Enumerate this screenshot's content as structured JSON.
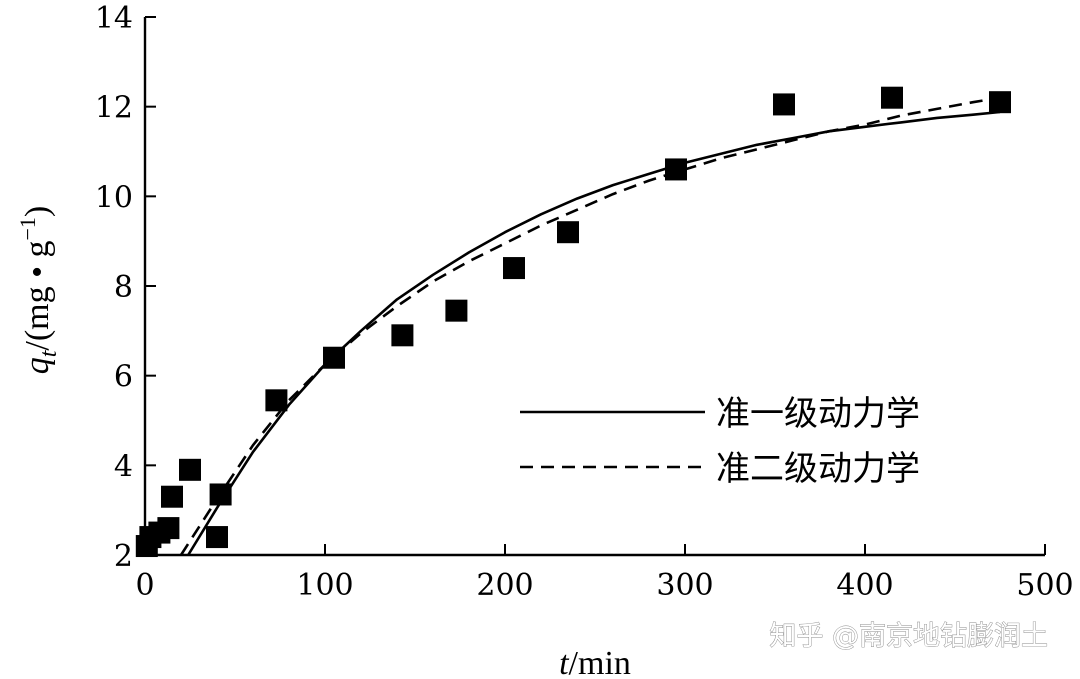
{
  "chart_data": {
    "type": "scatter",
    "title": "",
    "xlabel": "t/min",
    "ylabel": "qt/(mg • g−1)",
    "xlim": [
      0,
      500
    ],
    "ylim": [
      2,
      14
    ],
    "xticks": [
      0,
      100,
      200,
      300,
      400,
      500
    ],
    "yticks": [
      2,
      4,
      6,
      8,
      10,
      12,
      14
    ],
    "xtick_labels": [
      "0",
      "100",
      "200",
      "300",
      "400",
      "500"
    ],
    "ytick_labels": [
      "2",
      "4",
      "6",
      "8",
      "10",
      "12",
      "14"
    ],
    "grid": false,
    "legend_position": "middle-right",
    "marker": "filled-square",
    "points": {
      "x": [
        1,
        3,
        8,
        13,
        15,
        25,
        40,
        42,
        73,
        105,
        143,
        173,
        205,
        235,
        295,
        355,
        415,
        475
      ],
      "y": [
        2.2,
        2.4,
        2.5,
        2.6,
        3.3,
        3.9,
        2.4,
        3.35,
        5.45,
        6.4,
        6.9,
        7.45,
        8.4,
        9.2,
        10.6,
        12.05,
        12.2,
        12.1
      ]
    },
    "series": [
      {
        "name": "准一级动力学",
        "style": "solid",
        "x": [
          24,
          40,
          60,
          80,
          100,
          120,
          140,
          160,
          180,
          200,
          220,
          240,
          260,
          280,
          300,
          320,
          340,
          360,
          380,
          400,
          420,
          440,
          460,
          475
        ],
        "y": [
          2.0,
          3.05,
          4.3,
          5.35,
          6.25,
          7.0,
          7.7,
          8.25,
          8.75,
          9.2,
          9.6,
          9.95,
          10.25,
          10.5,
          10.75,
          10.95,
          11.15,
          11.3,
          11.45,
          11.55,
          11.65,
          11.75,
          11.82,
          11.88
        ]
      },
      {
        "name": "准二级动力学",
        "style": "dashed",
        "x": [
          20,
          40,
          60,
          80,
          100,
          120,
          140,
          160,
          180,
          200,
          220,
          240,
          260,
          280,
          300,
          320,
          340,
          360,
          380,
          400,
          420,
          440,
          460,
          475
        ],
        "y": [
          2.0,
          3.25,
          4.45,
          5.45,
          6.25,
          6.95,
          7.55,
          8.1,
          8.55,
          8.95,
          9.35,
          9.7,
          10.05,
          10.35,
          10.6,
          10.85,
          11.05,
          11.25,
          11.45,
          11.6,
          11.8,
          11.95,
          12.1,
          12.2
        ]
      }
    ]
  },
  "watermark": "知乎 @南京地钻膨润土"
}
